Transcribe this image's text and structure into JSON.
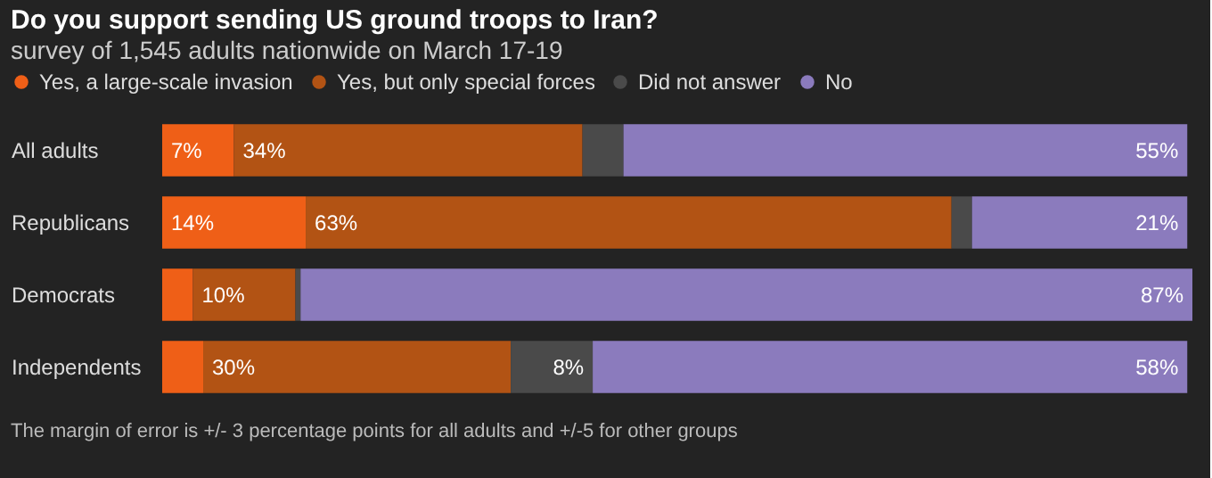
{
  "chart_data": {
    "type": "bar",
    "orientation": "horizontal",
    "stacked": true,
    "title": "Do you support sending US ground troops to Iran?",
    "subtitle": "survey of 1,545 adults nationwide on March 17-19",
    "annotations": [
      "The margin of error is +/- 3 percentage points for all adults and +/-5 for other groups"
    ],
    "categories": [
      "All adults",
      "Republicans",
      "Democrats",
      "Independents"
    ],
    "legend": "top",
    "series": [
      {
        "name": "Yes, a large-scale invasion",
        "color": "#ef5f17",
        "values": [
          7,
          14,
          3,
          4
        ],
        "value_labels": [
          "7%",
          "14%",
          null,
          null
        ]
      },
      {
        "name": "Yes, but only special forces",
        "color": "#b25314",
        "values": [
          34,
          63,
          10,
          30
        ],
        "value_labels": [
          "34%",
          "63%",
          "10%",
          "30%"
        ]
      },
      {
        "name": "Did not answer",
        "color": "#4a4a4a",
        "values": [
          4,
          2,
          0.5,
          8
        ],
        "value_labels": [
          null,
          null,
          null,
          "8%"
        ]
      },
      {
        "name": "No",
        "color": "#8b7bbd",
        "values": [
          55,
          21,
          87,
          58
        ],
        "value_labels": [
          "55%",
          "21%",
          "87%",
          "58%"
        ]
      }
    ]
  }
}
